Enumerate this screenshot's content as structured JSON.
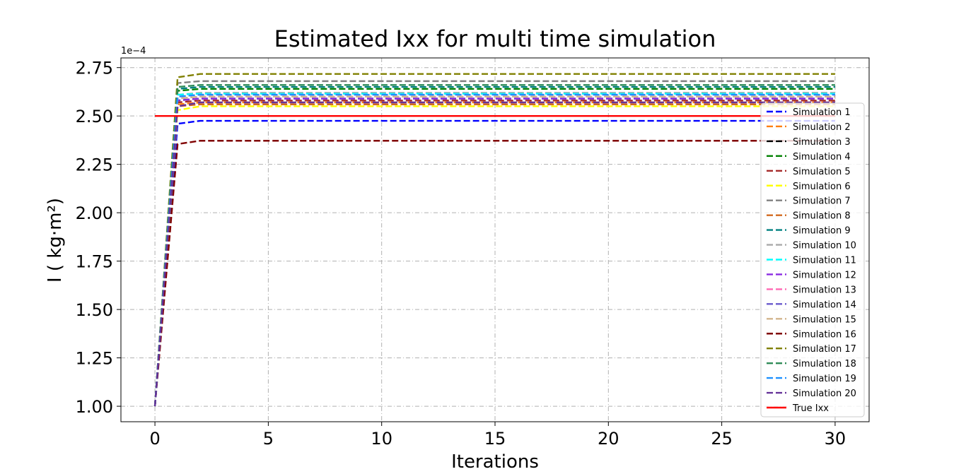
{
  "chart_data": {
    "type": "line",
    "title": "Estimated Ixx for multi time simulation",
    "xlabel": "Iterations",
    "ylabel": "I ( kg·m²)",
    "y_offset_label": "1e−4",
    "xlim": [
      -1.5,
      31.5
    ],
    "ylim": [
      0.92,
      2.8
    ],
    "x_ticks": [
      0,
      5,
      10,
      15,
      20,
      25,
      30
    ],
    "x_tick_labels": [
      "0",
      "5",
      "10",
      "15",
      "20",
      "25",
      "30"
    ],
    "y_ticks": [
      1.0,
      1.25,
      1.5,
      1.75,
      2.0,
      2.25,
      2.5,
      2.75
    ],
    "y_tick_labels": [
      "1.00",
      "1.25",
      "1.50",
      "1.75",
      "2.00",
      "2.25",
      "2.50",
      "2.75"
    ],
    "grid": true,
    "legend_position": "right",
    "series": [
      {
        "name": "Simulation 1",
        "color": "#0000ff",
        "style": "dashed",
        "peak": 2.46,
        "final": 2.475
      },
      {
        "name": "Simulation 2",
        "color": "#ff7f0e",
        "style": "dashed",
        "peak": 2.56,
        "final": 2.57
      },
      {
        "name": "Simulation 3",
        "color": "#000000",
        "style": "dashed",
        "peak": 2.58,
        "final": 2.59
      },
      {
        "name": "Simulation 4",
        "color": "#008000",
        "style": "dashed",
        "peak": 2.63,
        "final": 2.64
      },
      {
        "name": "Simulation 5",
        "color": "#a52a2a",
        "style": "dashed",
        "peak": 2.57,
        "final": 2.58
      },
      {
        "name": "Simulation 6",
        "color": "#ffff00",
        "style": "dashed",
        "peak": 2.53,
        "final": 2.55
      },
      {
        "name": "Simulation 7",
        "color": "#808080",
        "style": "dashed",
        "peak": 2.67,
        "final": 2.68
      },
      {
        "name": "Simulation 8",
        "color": "#d2691e",
        "style": "dashed",
        "peak": 2.55,
        "final": 2.56
      },
      {
        "name": "Simulation 9",
        "color": "#008080",
        "style": "dashed",
        "peak": 2.64,
        "final": 2.65
      },
      {
        "name": "Simulation 10",
        "color": "#a9a9a9",
        "style": "dashed",
        "peak": 2.61,
        "final": 2.62
      },
      {
        "name": "Simulation 11",
        "color": "#00ffff",
        "style": "dashed",
        "peak": 2.61,
        "final": 2.615
      },
      {
        "name": "Simulation 12",
        "color": "#8a2be2",
        "style": "dashed",
        "peak": 2.58,
        "final": 2.59
      },
      {
        "name": "Simulation 13",
        "color": "#ff69b4",
        "style": "dashed",
        "peak": 2.6,
        "final": 2.61
      },
      {
        "name": "Simulation 14",
        "color": "#6a5acd",
        "style": "dashed",
        "peak": 2.59,
        "final": 2.6
      },
      {
        "name": "Simulation 15",
        "color": "#d2b48c",
        "style": "dashed",
        "peak": 2.59,
        "final": 2.6
      },
      {
        "name": "Simulation 16",
        "color": "#800000",
        "style": "dashed",
        "peak": 2.355,
        "final": 2.372
      },
      {
        "name": "Simulation 17",
        "color": "#808000",
        "style": "dashed",
        "peak": 2.7,
        "final": 2.717
      },
      {
        "name": "Simulation 18",
        "color": "#2e8b57",
        "style": "dashed",
        "peak": 2.65,
        "final": 2.66
      },
      {
        "name": "Simulation 19",
        "color": "#1e90ff",
        "style": "dashed",
        "peak": 2.6,
        "final": 2.61
      },
      {
        "name": "Simulation 20",
        "color": "#663399",
        "style": "dashed",
        "peak": 2.55,
        "final": 2.57
      },
      {
        "name": "True Ixx",
        "color": "#ff0000",
        "style": "solid",
        "constant": 2.5
      }
    ],
    "start_value": 1.0,
    "x_start": 0,
    "x_peak": 1,
    "x_settle": 2,
    "x_end": 30
  }
}
